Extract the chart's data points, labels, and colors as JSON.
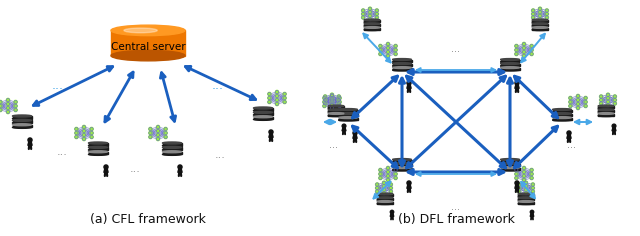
{
  "fig_width": 6.4,
  "fig_height": 2.36,
  "dpi": 100,
  "bg_color": "#ffffff",
  "arrow_blue": "#1A5FBF",
  "arrow_light": "#4AA8E8",
  "nn_color": "#6666CC",
  "nn_dot": "#99EE44",
  "db_dark": "#1a1a1a",
  "db_mid": "#444444",
  "db_shine": "#888888",
  "person_color": "#111111",
  "orange_top": "#FF9922",
  "orange_body": "#EE7700",
  "orange_bot": "#BB5500",
  "label_a": "(a) CFL framework",
  "label_b": "(b) DFL framework",
  "label_fs": 9
}
